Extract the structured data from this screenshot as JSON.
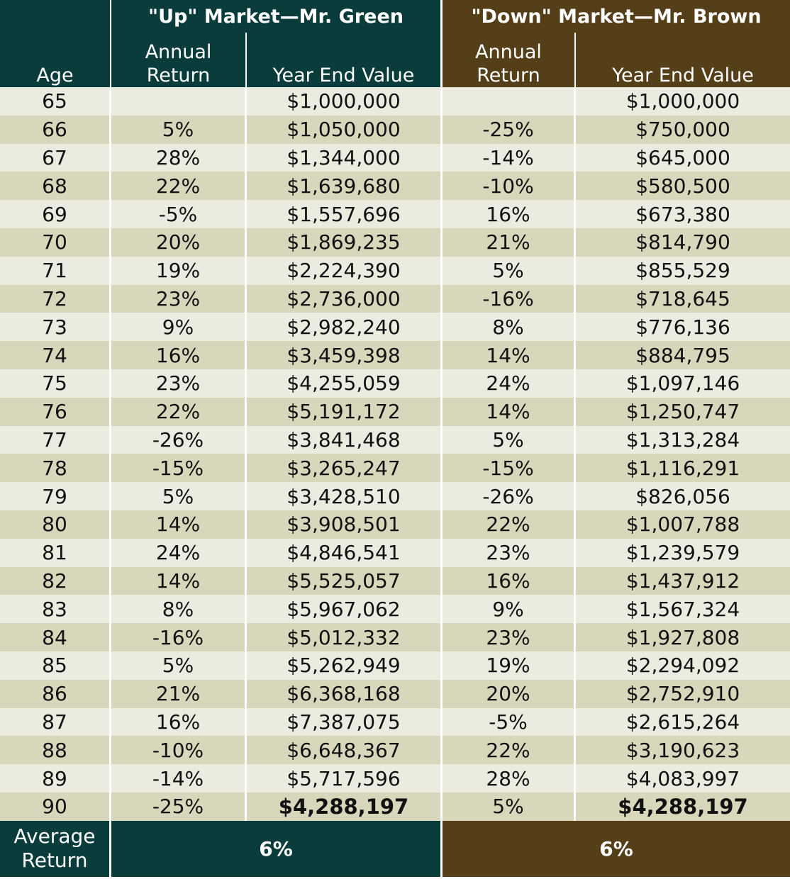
{
  "chart_data": {
    "type": "table",
    "header": {
      "green_title": "\"Up\" Market—Mr. Green",
      "brown_title": "\"Down\" Market—Mr. Brown",
      "age": "Age",
      "annual_return_1": "Annual",
      "annual_return_2": "Return",
      "year_end_value": "Year End Value"
    },
    "columns": [
      "Age",
      "Annual Return (Green)",
      "Year End Value (Green)",
      "Annual Return (Brown)",
      "Year End Value (Brown)"
    ],
    "rows": [
      {
        "age": "65",
        "green_return": "",
        "green_value": "$1,000,000",
        "brown_return": "",
        "brown_value": "$1,000,000"
      },
      {
        "age": "66",
        "green_return": "5%",
        "green_value": "$1,050,000",
        "brown_return": "-25%",
        "brown_value": "$750,000"
      },
      {
        "age": "67",
        "green_return": "28%",
        "green_value": "$1,344,000",
        "brown_return": "-14%",
        "brown_value": "$645,000"
      },
      {
        "age": "68",
        "green_return": "22%",
        "green_value": "$1,639,680",
        "brown_return": "-10%",
        "brown_value": "$580,500"
      },
      {
        "age": "69",
        "green_return": "-5%",
        "green_value": "$1,557,696",
        "brown_return": "16%",
        "brown_value": "$673,380"
      },
      {
        "age": "70",
        "green_return": "20%",
        "green_value": "$1,869,235",
        "brown_return": "21%",
        "brown_value": "$814,790"
      },
      {
        "age": "71",
        "green_return": "19%",
        "green_value": "$2,224,390",
        "brown_return": "5%",
        "brown_value": "$855,529"
      },
      {
        "age": "72",
        "green_return": "23%",
        "green_value": "$2,736,000",
        "brown_return": "-16%",
        "brown_value": "$718,645"
      },
      {
        "age": "73",
        "green_return": "9%",
        "green_value": "$2,982,240",
        "brown_return": "8%",
        "brown_value": "$776,136"
      },
      {
        "age": "74",
        "green_return": "16%",
        "green_value": "$3,459,398",
        "brown_return": "14%",
        "brown_value": "$884,795"
      },
      {
        "age": "75",
        "green_return": "23%",
        "green_value": "$4,255,059",
        "brown_return": "24%",
        "brown_value": "$1,097,146"
      },
      {
        "age": "76",
        "green_return": "22%",
        "green_value": "$5,191,172",
        "brown_return": "14%",
        "brown_value": "$1,250,747"
      },
      {
        "age": "77",
        "green_return": "-26%",
        "green_value": "$3,841,468",
        "brown_return": "5%",
        "brown_value": "$1,313,284"
      },
      {
        "age": "78",
        "green_return": "-15%",
        "green_value": "$3,265,247",
        "brown_return": "-15%",
        "brown_value": "$1,116,291"
      },
      {
        "age": "79",
        "green_return": "5%",
        "green_value": "$3,428,510",
        "brown_return": "-26%",
        "brown_value": "$826,056"
      },
      {
        "age": "80",
        "green_return": "14%",
        "green_value": "$3,908,501",
        "brown_return": "22%",
        "brown_value": "$1,007,788"
      },
      {
        "age": "81",
        "green_return": "24%",
        "green_value": "$4,846,541",
        "brown_return": "23%",
        "brown_value": "$1,239,579"
      },
      {
        "age": "82",
        "green_return": "14%",
        "green_value": "$5,525,057",
        "brown_return": "16%",
        "brown_value": "$1,437,912"
      },
      {
        "age": "83",
        "green_return": "8%",
        "green_value": "$5,967,062",
        "brown_return": "9%",
        "brown_value": "$1,567,324"
      },
      {
        "age": "84",
        "green_return": "-16%",
        "green_value": "$5,012,332",
        "brown_return": "23%",
        "brown_value": "$1,927,808"
      },
      {
        "age": "85",
        "green_return": "5%",
        "green_value": "$5,262,949",
        "brown_return": "19%",
        "brown_value": "$2,294,092"
      },
      {
        "age": "86",
        "green_return": "21%",
        "green_value": "$6,368,168",
        "brown_return": "20%",
        "brown_value": "$2,752,910"
      },
      {
        "age": "87",
        "green_return": "16%",
        "green_value": "$7,387,075",
        "brown_return": "-5%",
        "brown_value": "$2,615,264"
      },
      {
        "age": "88",
        "green_return": "-10%",
        "green_value": "$6,648,367",
        "brown_return": "22%",
        "brown_value": "$3,190,623"
      },
      {
        "age": "89",
        "green_return": "-14%",
        "green_value": "$5,717,596",
        "brown_return": "28%",
        "brown_value": "$4,083,997"
      },
      {
        "age": "90",
        "green_return": "-25%",
        "green_value": "$4,288,197",
        "brown_return": "5%",
        "brown_value": "$4,288,197"
      }
    ],
    "footer": {
      "label_1": "Average",
      "label_2": "Return",
      "green_average": "6%",
      "brown_average": "6%"
    },
    "colors": {
      "green_header": "#0a3c3b",
      "brown_header": "#553f18",
      "row_light": "#ecebe0",
      "row_dark": "#d9d7bb"
    }
  }
}
